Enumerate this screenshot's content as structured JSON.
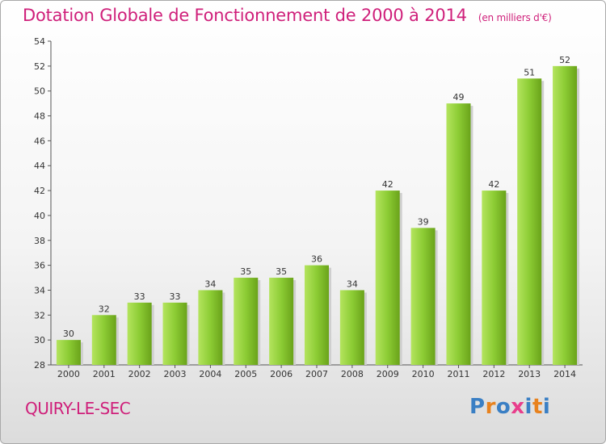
{
  "title": "Dotation Globale de Fonctionnement de 2000 à 2014",
  "subtitle": "(en milliers d'€)",
  "commune": "QUIRY-LE-SEC",
  "logo": {
    "text": "Proxiti",
    "letter_colors": [
      "#3a7fc4",
      "#e8821e",
      "#3a7fc4",
      "#e83e8c",
      "#3a7fc4",
      "#e8821e",
      "#3a7fc4"
    ]
  },
  "colors": {
    "title": "#cf1f7a",
    "bar_light": "#a6dc4f",
    "bar_dark": "#6aa31a",
    "bar_shadow": "#cfcfcf"
  },
  "chart_data": {
    "type": "bar",
    "categories": [
      "2000",
      "2001",
      "2002",
      "2003",
      "2004",
      "2005",
      "2006",
      "2007",
      "2008",
      "2009",
      "2010",
      "2011",
      "2012",
      "2013",
      "2014"
    ],
    "values": [
      30,
      32,
      33,
      33,
      34,
      35,
      35,
      36,
      34,
      42,
      39,
      49,
      42,
      51,
      52
    ],
    "ylim": [
      28,
      54
    ],
    "yticks": [
      28,
      30,
      32,
      34,
      36,
      38,
      40,
      42,
      44,
      46,
      48,
      50,
      52,
      54
    ],
    "grid": false,
    "legend": "none"
  }
}
